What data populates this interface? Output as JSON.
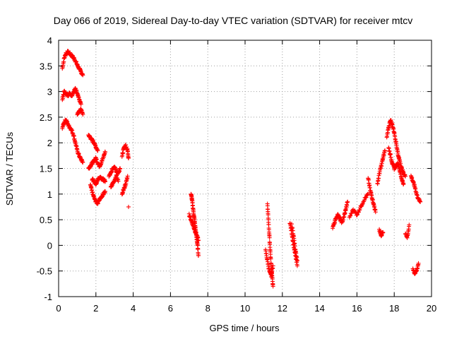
{
  "chart_data": {
    "type": "scatter",
    "title": "Day 066 of 2019, Sidereal Day-to-day VTEC variation (SDTVAR) for receiver mtcv",
    "xlabel": "GPS time / hours",
    "ylabel": "SDTVAR / TECUs",
    "xlim": [
      0,
      20
    ],
    "ylim": [
      -1,
      4
    ],
    "xticks": [
      0,
      2,
      4,
      6,
      8,
      10,
      12,
      14,
      16,
      18,
      20
    ],
    "yticks": [
      -1,
      -0.5,
      0,
      0.5,
      1,
      1.5,
      2,
      2.5,
      3,
      3.5,
      4
    ],
    "xtick_labels": [
      "0",
      "2",
      "4",
      "6",
      "8",
      "10",
      "12",
      "14",
      "16",
      "18",
      "20"
    ],
    "ytick_labels": [
      "-1",
      "-0.5",
      "0",
      "0.5",
      "1",
      "1.5",
      "2",
      "2.5",
      "3",
      "3.5",
      "4"
    ],
    "grid": true,
    "marker": "+",
    "series": [
      {
        "name": "SDTVAR",
        "color": "#ff0000",
        "segments": [
          {
            "x": [
              0.2,
              0.3,
              0.4,
              0.5,
              0.6,
              0.7,
              0.8,
              0.9,
              1.0,
              1.1,
              1.2,
              1.3
            ],
            "y": [
              3.45,
              3.65,
              3.75,
              3.77,
              3.74,
              3.7,
              3.66,
              3.6,
              3.52,
              3.45,
              3.38,
              3.32
            ]
          },
          {
            "x": [
              0.2,
              0.3,
              0.4,
              0.5,
              0.6,
              0.7,
              0.8,
              0.9,
              1.0,
              1.1,
              1.2
            ],
            "y": [
              2.85,
              3.0,
              2.95,
              2.93,
              2.97,
              2.92,
              3.0,
              3.05,
              2.98,
              2.85,
              2.75
            ]
          },
          {
            "x": [
              1.0,
              1.1,
              1.2,
              1.3
            ],
            "y": [
              2.55,
              2.6,
              2.65,
              2.55
            ]
          },
          {
            "x": [
              0.2,
              0.3,
              0.4,
              0.5,
              0.6,
              0.7,
              0.8,
              0.9,
              1.0,
              1.1,
              1.2,
              1.3
            ],
            "y": [
              2.3,
              2.4,
              2.45,
              2.35,
              2.3,
              2.25,
              2.15,
              2.0,
              1.85,
              1.75,
              1.68,
              1.62
            ]
          },
          {
            "x": [
              1.6,
              1.7,
              1.8,
              1.9,
              2.0,
              2.1
            ],
            "y": [
              2.15,
              2.1,
              2.05,
              2.0,
              1.92,
              1.85
            ]
          },
          {
            "x": [
              1.6,
              1.7,
              1.8,
              1.9,
              2.0,
              2.1,
              2.2,
              2.3,
              2.4,
              2.5
            ],
            "y": [
              1.5,
              1.55,
              1.6,
              1.65,
              1.7,
              1.6,
              1.55,
              1.62,
              1.72,
              1.82
            ]
          },
          {
            "x": [
              1.7,
              1.8,
              1.9,
              2.0,
              2.1,
              2.2,
              2.3,
              2.4,
              2.5
            ],
            "y": [
              1.2,
              1.05,
              0.95,
              0.85,
              0.82,
              0.9,
              0.95,
              1.0,
              1.05
            ]
          },
          {
            "x": [
              1.8,
              1.9,
              2.0,
              2.1,
              2.2,
              2.3,
              2.4,
              2.5
            ],
            "y": [
              1.3,
              1.25,
              1.2,
              1.28,
              1.32,
              1.3,
              1.28,
              1.25
            ]
          },
          {
            "x": [
              2.7,
              2.8,
              2.9,
              3.0,
              3.1,
              3.2,
              3.3
            ],
            "y": [
              1.35,
              1.4,
              1.5,
              1.55,
              1.45,
              1.4,
              1.5
            ]
          },
          {
            "x": [
              2.8,
              2.9,
              3.0,
              3.1,
              3.2
            ],
            "y": [
              1.15,
              1.2,
              1.25,
              1.35,
              1.25
            ]
          },
          {
            "x": [
              3.4,
              3.5,
              3.6,
              3.7,
              3.75
            ],
            "y": [
              1.75,
              1.9,
              1.95,
              1.85,
              1.7
            ]
          },
          {
            "x": [
              3.4,
              3.5,
              3.6,
              3.7
            ],
            "y": [
              1.0,
              1.1,
              1.2,
              1.35
            ]
          },
          {
            "x": [
              3.75
            ],
            "y": [
              0.75
            ]
          },
          {
            "x": [
              7.1,
              7.15,
              7.2,
              7.25,
              7.3,
              7.35,
              7.4,
              7.45,
              7.5
            ],
            "y": [
              1.0,
              0.9,
              0.75,
              0.6,
              0.45,
              0.3,
              0.15,
              0.0,
              -0.2
            ]
          },
          {
            "x": [
              7.0,
              7.1,
              7.2,
              7.3,
              7.4,
              7.5
            ],
            "y": [
              0.6,
              0.5,
              0.4,
              0.3,
              0.2,
              0.1
            ]
          },
          {
            "x": [
              11.2,
              11.25,
              11.3,
              11.35,
              11.4,
              11.45,
              11.5
            ],
            "y": [
              0.8,
              0.5,
              0.2,
              -0.1,
              -0.4,
              -0.6,
              -0.8
            ]
          },
          {
            "x": [
              11.1,
              11.2,
              11.3,
              11.4,
              11.5
            ],
            "y": [
              -0.1,
              -0.3,
              -0.5,
              -0.6,
              -0.4
            ]
          },
          {
            "x": [
              12.4,
              12.5,
              12.6,
              12.7,
              12.8
            ],
            "y": [
              0.45,
              0.25,
              0.0,
              -0.2,
              -0.4
            ]
          },
          {
            "x": [
              12.5,
              12.6,
              12.7,
              12.8
            ],
            "y": [
              0.4,
              0.2,
              -0.1,
              -0.3
            ]
          },
          {
            "x": [
              14.7,
              14.8,
              14.9,
              15.0,
              15.1,
              15.2,
              15.3,
              15.4,
              15.5
            ],
            "y": [
              0.35,
              0.45,
              0.55,
              0.6,
              0.5,
              0.45,
              0.55,
              0.7,
              0.85
            ]
          },
          {
            "x": [
              15.6,
              15.8,
              16.0,
              16.2,
              16.4,
              16.6
            ],
            "y": [
              0.55,
              0.7,
              0.6,
              0.75,
              0.9,
              1.0
            ]
          },
          {
            "x": [
              16.6,
              16.7,
              16.8,
              16.9,
              17.0
            ],
            "y": [
              1.3,
              1.1,
              0.95,
              0.8,
              0.65
            ]
          },
          {
            "x": [
              17.1,
              17.2,
              17.3,
              17.4,
              17.5
            ],
            "y": [
              1.2,
              1.4,
              1.55,
              1.7,
              1.85
            ]
          },
          {
            "x": [
              17.2,
              17.3,
              17.4
            ],
            "y": [
              0.3,
              0.2,
              0.25
            ]
          },
          {
            "x": [
              17.6,
              17.7,
              17.8,
              17.9,
              18.0,
              18.1,
              18.2
            ],
            "y": [
              2.1,
              2.3,
              2.45,
              2.35,
              2.2,
              2.0,
              1.8
            ]
          },
          {
            "x": [
              17.7,
              17.8,
              17.9,
              18.0,
              18.1,
              18.2,
              18.3,
              18.4,
              18.5
            ],
            "y": [
              1.9,
              1.75,
              1.6,
              1.5,
              1.55,
              1.6,
              1.45,
              1.3,
              1.2
            ]
          },
          {
            "x": [
              18.2,
              18.3,
              18.4,
              18.5,
              18.6
            ],
            "y": [
              1.75,
              1.65,
              1.5,
              1.4,
              1.35
            ]
          },
          {
            "x": [
              18.6,
              18.7,
              18.8
            ],
            "y": [
              0.25,
              0.15,
              0.4
            ]
          },
          {
            "x": [
              18.9,
              19.0,
              19.1,
              19.2,
              19.3,
              19.4
            ],
            "y": [
              1.35,
              1.25,
              1.15,
              1.0,
              0.9,
              0.85
            ]
          },
          {
            "x": [
              19.0,
              19.1,
              19.2,
              19.3
            ],
            "y": [
              -0.45,
              -0.55,
              -0.5,
              -0.35
            ]
          }
        ]
      }
    ]
  }
}
